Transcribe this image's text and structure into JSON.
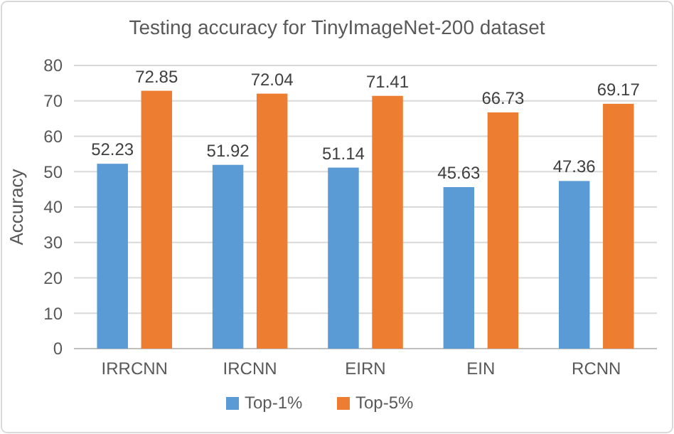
{
  "chart_data": {
    "type": "bar",
    "title": "Testing accuracy for TinyImageNet-200 dataset",
    "ylabel": "Accuracy",
    "categories": [
      "IRRCNN",
      "IRCNN",
      "EIRN",
      "EIN",
      "RCNN"
    ],
    "series": [
      {
        "name": "Top-1%",
        "color": "#5b9bd5",
        "values": [
          52.23,
          51.92,
          51.14,
          45.63,
          47.36
        ]
      },
      {
        "name": "Top-5%",
        "color": "#ed7d31",
        "values": [
          72.85,
          72.04,
          71.41,
          66.73,
          69.17
        ]
      }
    ],
    "ylim": [
      0,
      80
    ],
    "yticks": [
      0,
      10,
      20,
      30,
      40,
      50,
      60,
      70,
      80
    ],
    "grid": "y",
    "legend": "bottom",
    "data_labels": true
  }
}
